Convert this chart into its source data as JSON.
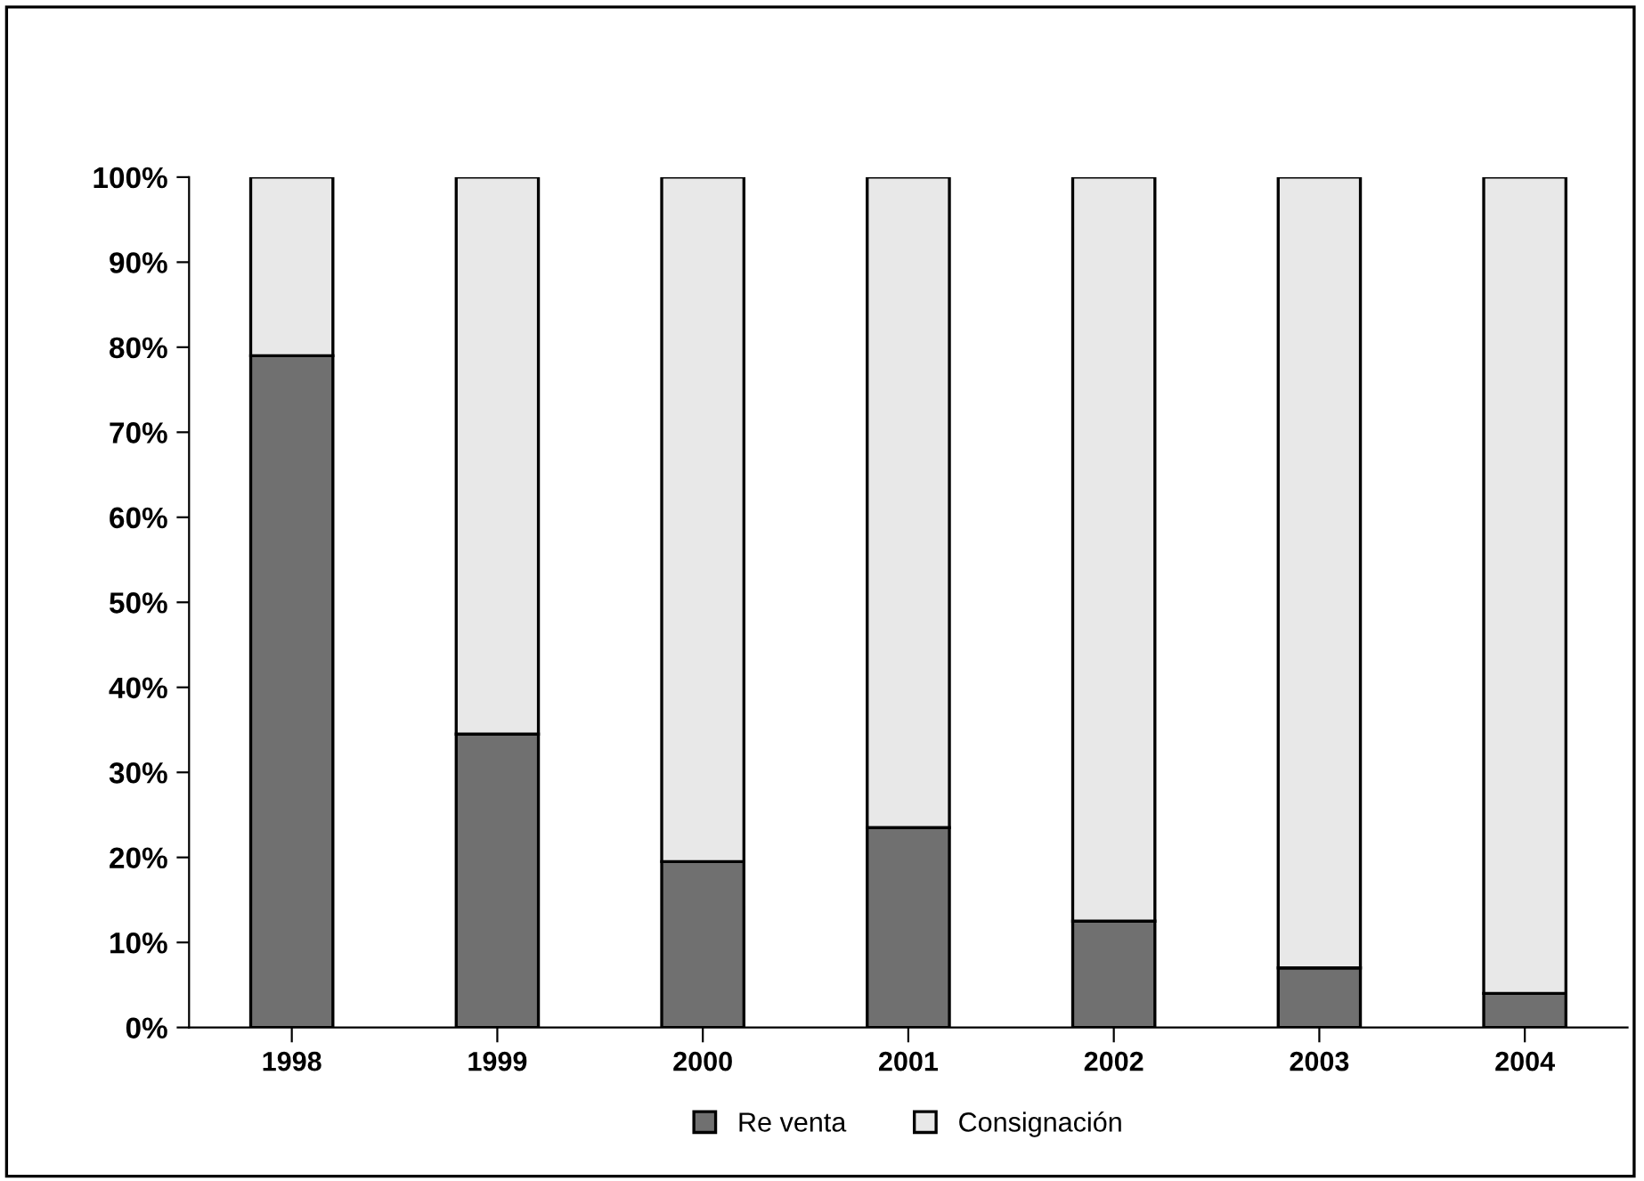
{
  "chart_data": {
    "type": "bar",
    "stacked": true,
    "categories": [
      "1998",
      "1999",
      "2000",
      "2001",
      "2002",
      "2003",
      "2004"
    ],
    "series": [
      {
        "name": "Re venta",
        "color": "#707070",
        "values": [
          79,
          34.5,
          19.5,
          23.5,
          12.5,
          7,
          4
        ]
      },
      {
        "name": "Consignación",
        "color": "#e8e8e8",
        "values": [
          21,
          65.5,
          80.5,
          76.5,
          87.5,
          93,
          96
        ]
      }
    ],
    "ylim": [
      0,
      100
    ],
    "yticks": [
      {
        "value": 0,
        "label": "0%"
      },
      {
        "value": 10,
        "label": "10%"
      },
      {
        "value": 20,
        "label": "20%"
      },
      {
        "value": 30,
        "label": "30%"
      },
      {
        "value": 40,
        "label": "40%"
      },
      {
        "value": 50,
        "label": "50%"
      },
      {
        "value": 60,
        "label": "60%"
      },
      {
        "value": 70,
        "label": "70%"
      },
      {
        "value": 80,
        "label": "80%"
      },
      {
        "value": 90,
        "label": "90%"
      },
      {
        "value": 100,
        "label": "100%"
      }
    ],
    "grid": false,
    "legend": "bottom"
  }
}
